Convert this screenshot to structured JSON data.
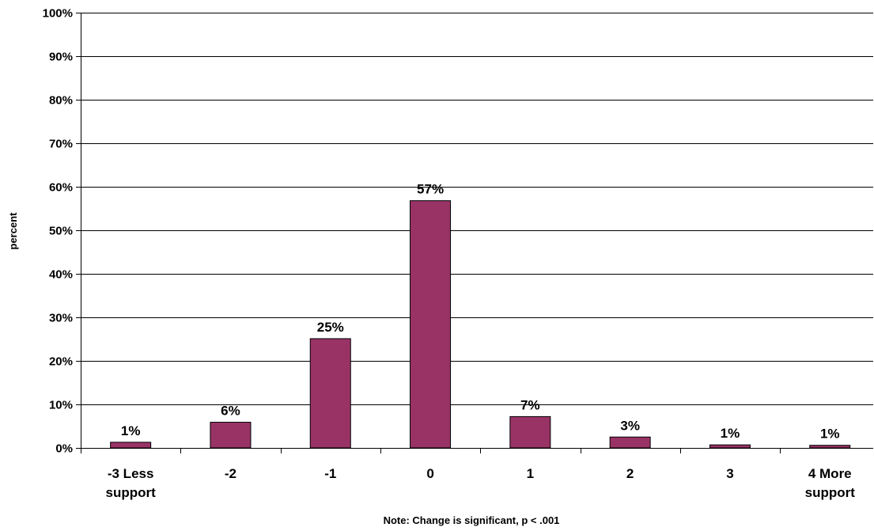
{
  "chart_data": {
    "type": "bar",
    "categories": [
      [
        "-3 Less",
        "support"
      ],
      [
        "-2"
      ],
      [
        "-1"
      ],
      [
        "0"
      ],
      [
        "1"
      ],
      [
        "2"
      ],
      [
        "3"
      ],
      [
        "4 More",
        "support"
      ]
    ],
    "values": [
      1.3,
      5.9,
      25.1,
      56.8,
      7.2,
      2.5,
      0.7,
      0.6
    ],
    "data_labels": [
      "1%",
      "6%",
      "25%",
      "57%",
      "7%",
      "3%",
      "1%",
      "1%"
    ],
    "ylabel": "percent",
    "ylim": [
      0,
      100
    ],
    "yticks": [
      0,
      10,
      20,
      30,
      40,
      50,
      60,
      70,
      80,
      90,
      100
    ],
    "ytick_labels": [
      "0%",
      "10%",
      "20%",
      "30%",
      "40%",
      "50%",
      "60%",
      "70%",
      "80%",
      "90%",
      "100%"
    ],
    "note": "Note: Change is significant, p < .001",
    "grid": true,
    "bar_color": "#993366"
  }
}
